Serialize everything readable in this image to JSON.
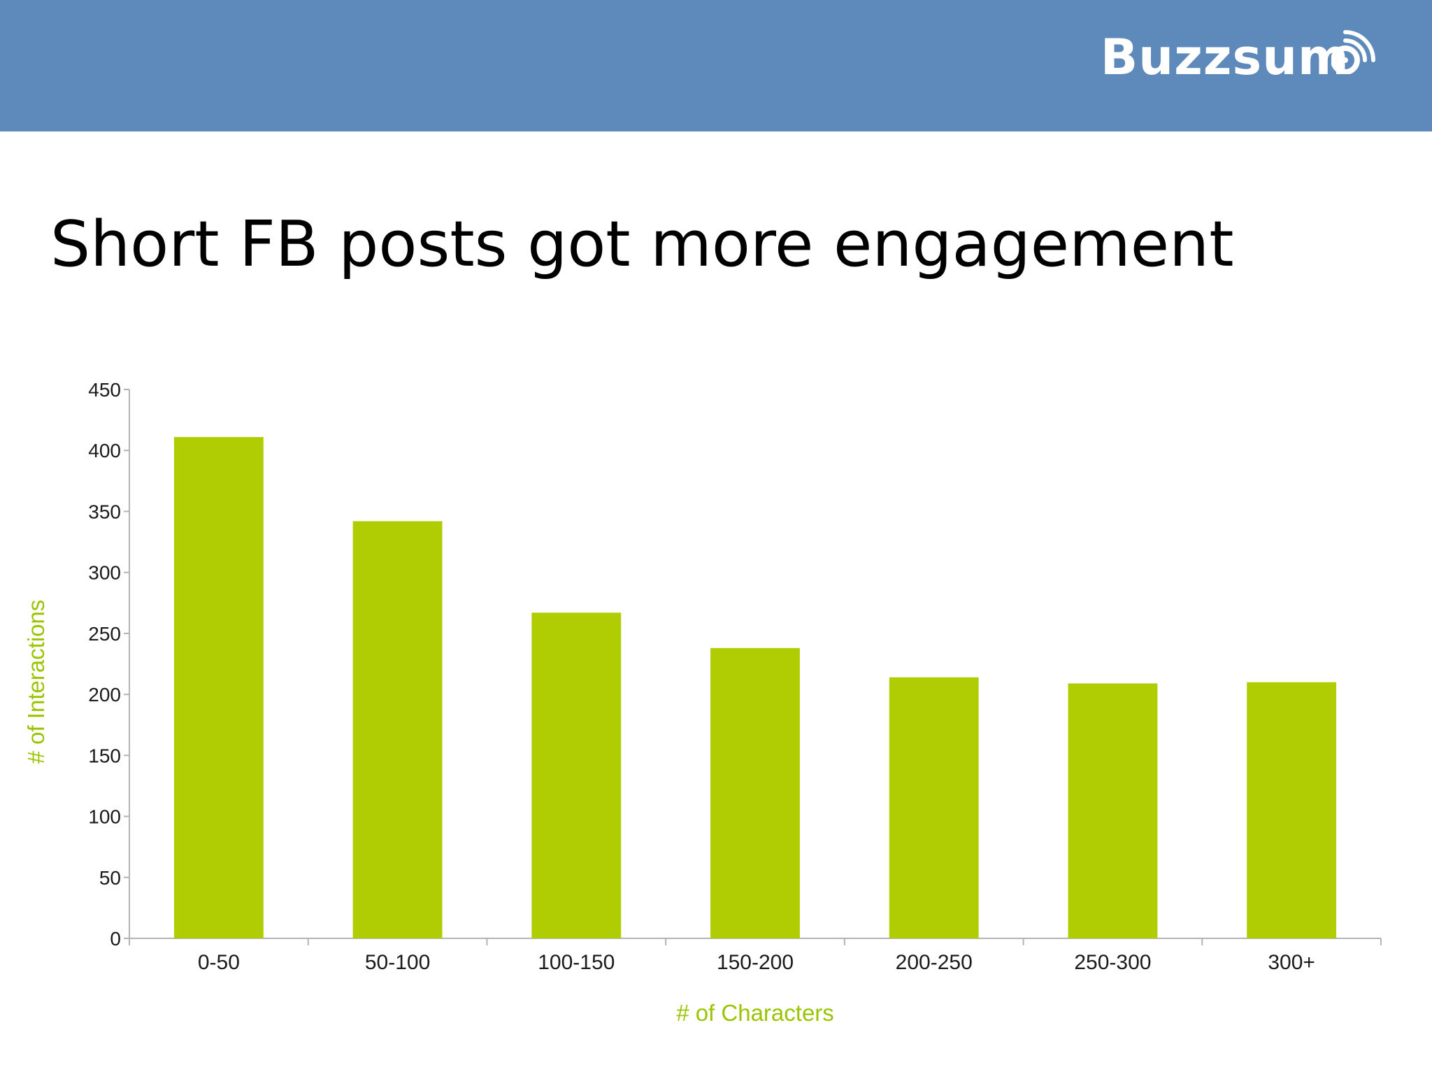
{
  "header": {
    "brand": "Buzzsum",
    "brand_icon": "rss-o-icon",
    "color": "#5e89bb"
  },
  "slide": {
    "title": "Short FB posts got more engagement"
  },
  "chart_data": {
    "type": "bar",
    "categories": [
      "0-50",
      "50-100",
      "100-150",
      "150-200",
      "200-250",
      "250-300",
      "300+"
    ],
    "values": [
      411,
      342,
      267,
      238,
      214,
      209,
      210
    ],
    "xlabel": "# of Characters",
    "ylabel": "# of Interactions",
    "ylim": [
      0,
      450
    ],
    "yticks": [
      0,
      50,
      100,
      150,
      200,
      250,
      300,
      350,
      400,
      450
    ],
    "bar_color": "#afcd02",
    "label_color": "#9bc400",
    "grid": false,
    "legend": "none"
  }
}
